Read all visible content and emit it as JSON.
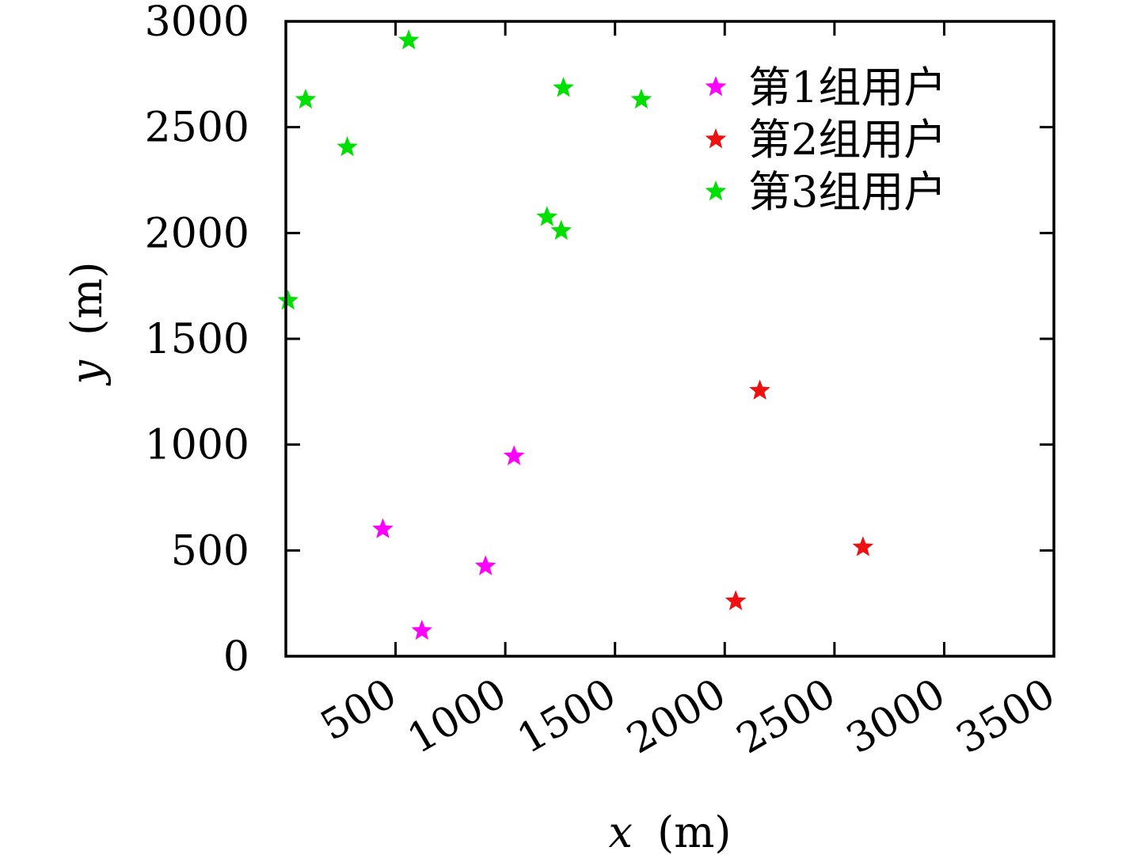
{
  "chart_data": {
    "type": "scatter",
    "xlabel_var": "x",
    "xlabel_unit": "(m)",
    "ylabel_var": "y",
    "ylabel_unit": "(m)",
    "xlim": [
      0,
      3500
    ],
    "ylim": [
      0,
      3000
    ],
    "xticks": [
      500,
      1000,
      1500,
      2000,
      2500,
      3000,
      3500
    ],
    "xtick_labels": [
      "500",
      "1000",
      "1500",
      "2000",
      "2500",
      "3000",
      "3500"
    ],
    "yticks": [
      0,
      500,
      1000,
      1500,
      2000,
      2500,
      3000
    ],
    "ytick_labels": [
      "0",
      "500",
      "1000",
      "1500",
      "2000",
      "2500",
      "3000"
    ],
    "grid": false,
    "legend_position": "top-right",
    "marker": "star",
    "series": [
      {
        "name": "第1组用户",
        "color": "#ff00ff",
        "points": [
          [
            442,
            600
          ],
          [
            620,
            120
          ],
          [
            910,
            425
          ],
          [
            1040,
            945
          ]
        ]
      },
      {
        "name": "第2组用户",
        "color": "#ee1111",
        "points": [
          [
            2050,
            260
          ],
          [
            2160,
            1255
          ],
          [
            2630,
            515
          ]
        ]
      },
      {
        "name": "第3组用户",
        "color": "#00e000",
        "points": [
          [
            10,
            1680
          ],
          [
            90,
            2630
          ],
          [
            280,
            2405
          ],
          [
            560,
            2910
          ],
          [
            1190,
            2075
          ],
          [
            1255,
            2010
          ],
          [
            1265,
            2685
          ],
          [
            1620,
            2630
          ]
        ]
      }
    ]
  }
}
